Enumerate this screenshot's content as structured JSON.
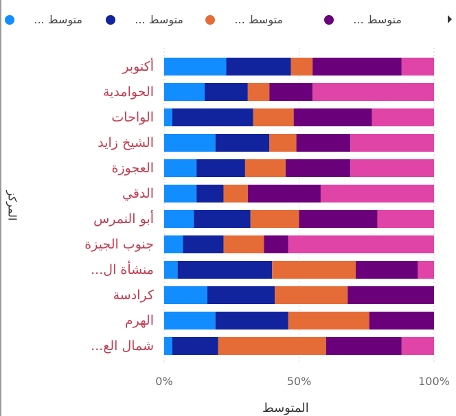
{
  "chart_data": {
    "type": "stacked_bar_100",
    "x_label": "المتوسط",
    "y_label": "المركز",
    "categories": [
      "أكتوبر",
      "الحوامدية",
      "الواحات",
      "الشيخ زايد",
      "العجوزة",
      "الدقي",
      "أبو النمرس",
      "جنوب الجيزة",
      "منشأة ال...",
      "كرادسة",
      "الهرم",
      "شمال الع..."
    ],
    "series": [
      {
        "name": "متوسط ...",
        "color": "#118dff",
        "values": [
          23,
          15,
          3,
          19,
          12,
          12,
          11,
          7,
          5,
          16,
          19,
          3
        ]
      },
      {
        "name": "متوسط ...",
        "color": "#12239e",
        "values": [
          24,
          16,
          30,
          20,
          18,
          10,
          21,
          15,
          35,
          25,
          27,
          17
        ]
      },
      {
        "name": "متوسط ...",
        "color": "#e66c37",
        "values": [
          8,
          8,
          15,
          10,
          15,
          9,
          18,
          15,
          31,
          27,
          30,
          40
        ]
      },
      {
        "name": "متوسط ...",
        "color": "#6b007b",
        "values": [
          33,
          16,
          29,
          20,
          24,
          27,
          29,
          9,
          23,
          32,
          24,
          28
        ]
      },
      {
        "name": null,
        "color": "#e044a7",
        "values": [
          12,
          45,
          23,
          31,
          31,
          42,
          21,
          54,
          6,
          0,
          0,
          12
        ]
      }
    ],
    "xlim": [
      0,
      100
    ],
    "xticks": [
      {
        "value": 0,
        "label": "0%"
      },
      {
        "value": 50,
        "label": "50%"
      },
      {
        "value": 100,
        "label": "100%"
      }
    ],
    "grid": true
  }
}
